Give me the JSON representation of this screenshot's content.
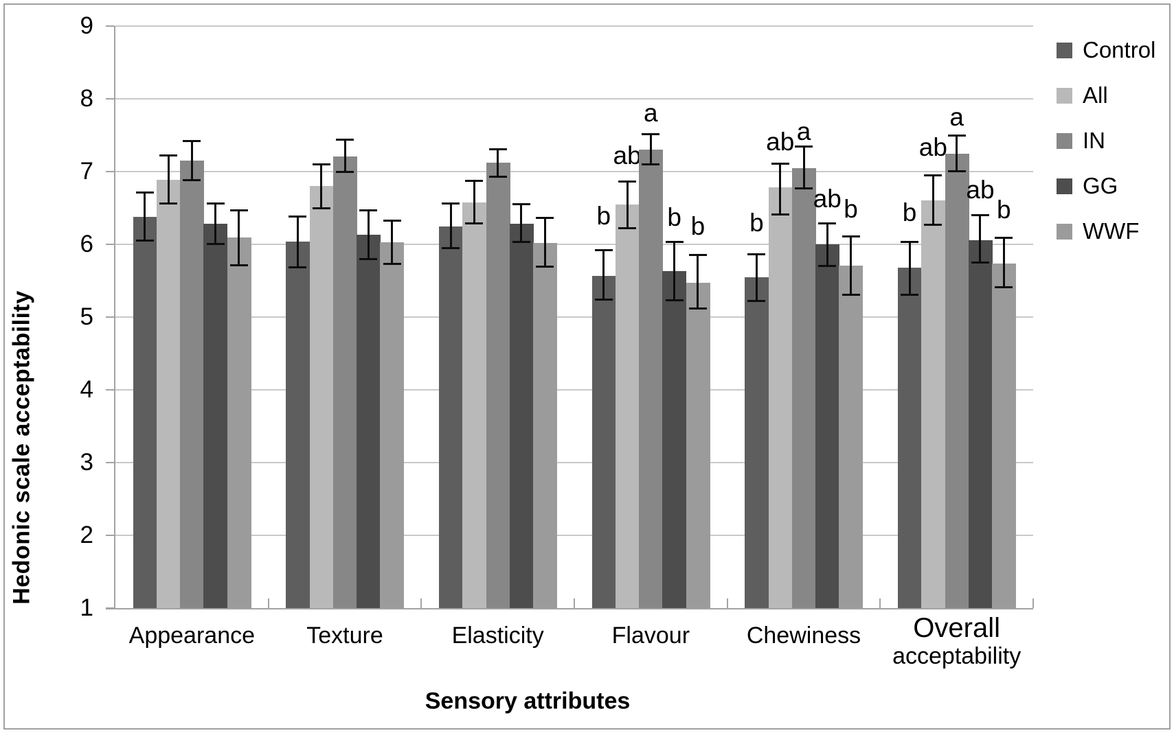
{
  "chart_data": {
    "type": "bar",
    "title": "",
    "ylabel": "Hedonic scale acceptability",
    "xlabel": "Sensory attributes",
    "ylim": [
      1,
      9
    ],
    "yticks": [
      1,
      2,
      3,
      4,
      5,
      6,
      7,
      8,
      9
    ],
    "grid": true,
    "legend_position": "right",
    "error_bars": true,
    "categories": [
      {
        "label": "Appearance",
        "lines": [
          "Appearance"
        ]
      },
      {
        "label": "Texture",
        "lines": [
          "Texture"
        ]
      },
      {
        "label": "Elasticity",
        "lines": [
          "Elasticity"
        ]
      },
      {
        "label": "Flavour",
        "lines": [
          "Flavour"
        ]
      },
      {
        "label": "Chewiness",
        "lines": [
          "Chewiness"
        ]
      },
      {
        "label": "Overall acceptability",
        "lines": [
          "Overall",
          "acceptability"
        ]
      }
    ],
    "series": [
      {
        "name": "Control",
        "color": "#5e5e5e",
        "values": [
          6.38,
          6.04,
          6.25,
          5.57,
          5.55,
          5.68
        ],
        "err_lo": [
          6.05,
          5.68,
          5.94,
          5.24,
          5.22,
          5.3
        ],
        "err_hi": [
          6.72,
          6.39,
          6.57,
          5.92,
          5.87,
          6.04
        ],
        "letters": [
          null,
          null,
          null,
          {
            "text": "b",
            "v": 6.39
          },
          {
            "text": "b",
            "v": 6.29
          },
          {
            "text": "b",
            "v": 6.43
          }
        ]
      },
      {
        "name": "All",
        "color": "#b9b9b9",
        "values": [
          6.89,
          6.8,
          6.58,
          6.55,
          6.78,
          6.6
        ],
        "err_lo": [
          6.56,
          6.49,
          6.28,
          6.22,
          6.41,
          6.26
        ],
        "err_hi": [
          7.23,
          7.1,
          6.88,
          6.87,
          7.11,
          6.95
        ],
        "letters": [
          null,
          null,
          null,
          {
            "text": "ab",
            "v": 7.22
          },
          {
            "text": "ab",
            "v": 7.41
          },
          {
            "text": "ab",
            "v": 7.33
          }
        ]
      },
      {
        "name": "IN",
        "color": "#878787",
        "values": [
          7.15,
          7.21,
          7.12,
          7.3,
          7.05,
          7.25
        ],
        "err_lo": [
          6.88,
          6.99,
          6.92,
          7.09,
          6.76,
          7.0
        ],
        "err_hi": [
          7.42,
          7.44,
          7.31,
          7.52,
          7.35,
          7.5
        ],
        "letters": [
          null,
          null,
          null,
          {
            "text": "a",
            "v": 7.8
          },
          {
            "text": "a",
            "v": 7.55
          },
          {
            "text": "a",
            "v": 7.75
          }
        ]
      },
      {
        "name": "GG",
        "color": "#4d4d4d",
        "values": [
          6.28,
          6.13,
          6.28,
          5.63,
          6.0,
          6.06
        ],
        "err_lo": [
          6.0,
          5.79,
          6.03,
          5.23,
          5.7,
          5.75
        ],
        "err_hi": [
          6.57,
          6.47,
          6.56,
          6.04,
          6.29,
          6.41
        ],
        "letters": [
          null,
          null,
          null,
          {
            "text": "b",
            "v": 6.37
          },
          {
            "text": "ab",
            "v": 6.62
          },
          {
            "text": "ab",
            "v": 6.75
          }
        ]
      },
      {
        "name": "WWF",
        "color": "#9b9b9b",
        "values": [
          6.09,
          6.03,
          6.02,
          5.47,
          5.71,
          5.74
        ],
        "err_lo": [
          5.71,
          5.73,
          5.69,
          5.11,
          5.3,
          5.41
        ],
        "err_hi": [
          6.47,
          6.33,
          6.37,
          5.86,
          6.11,
          6.09
        ],
        "letters": [
          null,
          null,
          null,
          {
            "text": "b",
            "v": 6.25
          },
          {
            "text": "b",
            "v": 6.48
          },
          {
            "text": "b",
            "v": 6.47
          }
        ]
      }
    ],
    "styles": {
      "gridline_color": "#c9c9c9",
      "axis_color": "#a3a3a3",
      "error_bar_color": "#0d0d0d",
      "frame_color": "#a0a0a0"
    }
  }
}
